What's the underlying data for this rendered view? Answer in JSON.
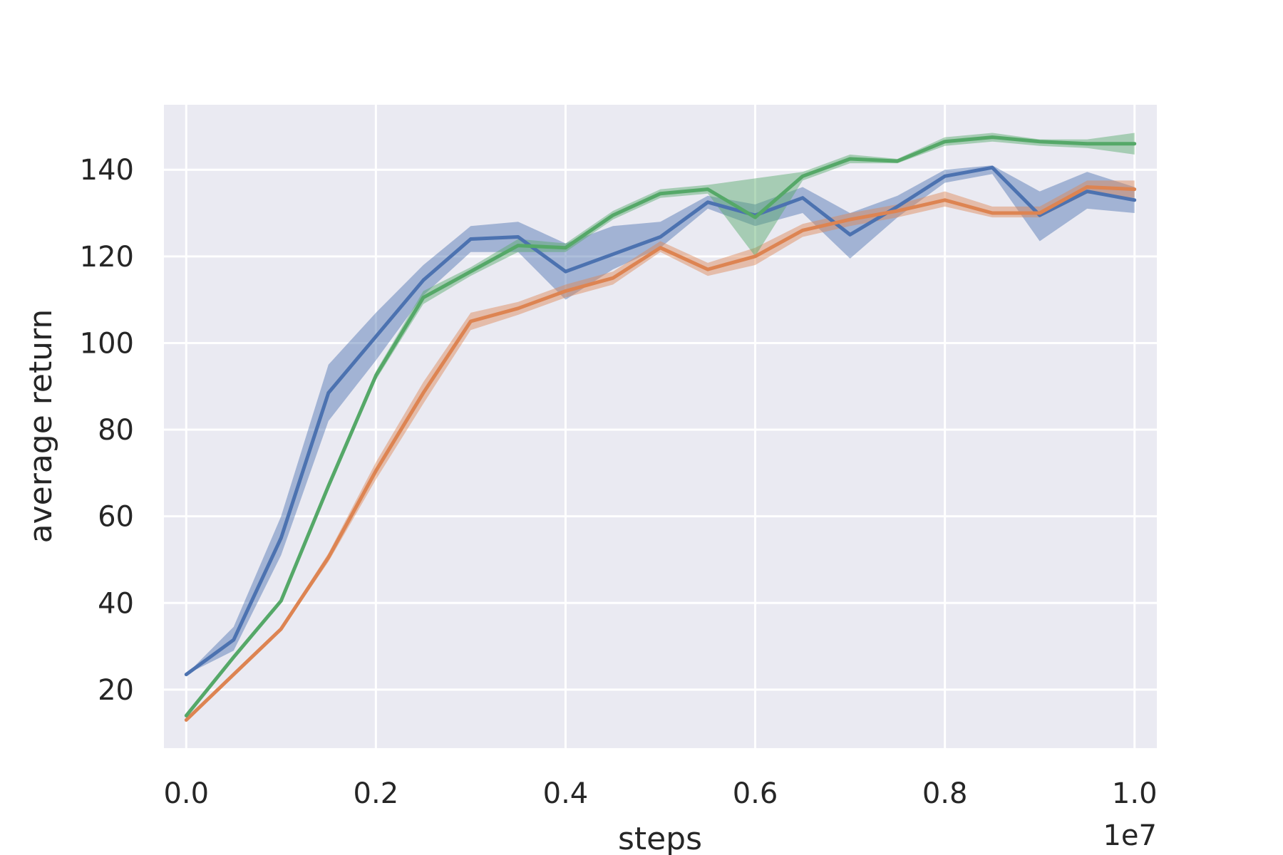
{
  "chart_data": {
    "type": "line",
    "title": "",
    "xlabel": "steps",
    "ylabel": "average return",
    "x_offset_label": "1e7",
    "xlim": [
      -0.0235,
      1.0235
    ],
    "ylim": [
      6.5,
      155
    ],
    "x_ticks": [
      0.0,
      0.2,
      0.4,
      0.6,
      0.8,
      1.0
    ],
    "x_tick_labels": [
      "0.0",
      "0.2",
      "0.4",
      "0.6",
      "0.8",
      "1.0"
    ],
    "y_ticks": [
      20,
      40,
      60,
      80,
      100,
      120,
      140
    ],
    "y_tick_labels": [
      "20",
      "40",
      "60",
      "80",
      "100",
      "120",
      "140"
    ],
    "grid": true,
    "legend": "none",
    "colors": {
      "background": "#eaeaf2",
      "grid": "#ffffff",
      "blue": "#4c72b0",
      "orange": "#dd8452",
      "green": "#55a868"
    },
    "x": [
      0.0,
      0.05,
      0.1,
      0.15,
      0.2,
      0.25,
      0.3,
      0.35,
      0.4,
      0.45,
      0.5,
      0.55,
      0.6,
      0.65,
      0.7,
      0.75,
      0.8,
      0.85,
      0.9,
      0.95,
      1.0
    ],
    "series": [
      {
        "color": "#4c72b0",
        "values": [
          23.5,
          31.5,
          55,
          88.5,
          101.5,
          114.5,
          124,
          124.5,
          116.5,
          120.5,
          124.5,
          132.5,
          129.5,
          133.5,
          125,
          131.5,
          138.5,
          140.5,
          129.5,
          135,
          133
        ],
        "lower": [
          23.5,
          29,
          51,
          82,
          96,
          111,
          121,
          121,
          110,
          117,
          122,
          131,
          127,
          130,
          119.5,
          129,
          137,
          139,
          123.5,
          131,
          130
        ],
        "upper": [
          23.5,
          34.5,
          60,
          95,
          107,
          118,
          127,
          128,
          123,
          127,
          128,
          134,
          132,
          136,
          130,
          134,
          140,
          141,
          135,
          139.5,
          136
        ]
      },
      {
        "color": "#dd8452",
        "values": [
          13,
          23.5,
          34,
          50.5,
          70.5,
          88.5,
          105,
          108,
          112,
          115,
          122,
          117,
          120,
          126,
          128.5,
          130.5,
          133,
          130,
          130,
          136,
          135.5
        ],
        "lower": [
          12.5,
          23,
          33.5,
          49.5,
          68.5,
          86,
          103,
          106.5,
          110.5,
          113.5,
          121,
          115.5,
          118,
          124.5,
          127,
          129,
          131.5,
          129,
          129,
          134.5,
          133.5
        ],
        "upper": [
          13.5,
          24,
          34.5,
          51.5,
          72.5,
          91,
          107,
          109.5,
          113.5,
          116.5,
          123.5,
          118.5,
          122,
          127.5,
          130,
          132,
          135,
          131.5,
          131.5,
          137.5,
          137.5
        ]
      },
      {
        "color": "#55a868",
        "values": [
          14,
          27.5,
          40.5,
          67,
          92.5,
          110.5,
          116.5,
          122.5,
          122,
          129.5,
          134.5,
          135.5,
          129,
          138.5,
          142.5,
          142,
          146.5,
          147.5,
          146.5,
          146,
          146
        ],
        "lower": [
          13.5,
          27,
          40,
          66,
          91.5,
          109,
          115.5,
          121,
          121,
          128.5,
          133.5,
          134.5,
          120,
          137.5,
          141.5,
          141.5,
          145.5,
          146.5,
          145.5,
          145,
          143.5
        ],
        "upper": [
          14.5,
          28,
          41,
          68,
          93.5,
          112,
          117.5,
          124,
          123,
          130.5,
          135.5,
          136.5,
          138,
          139.5,
          143.5,
          142.5,
          147.5,
          148.5,
          147,
          147,
          148.5
        ]
      }
    ]
  }
}
